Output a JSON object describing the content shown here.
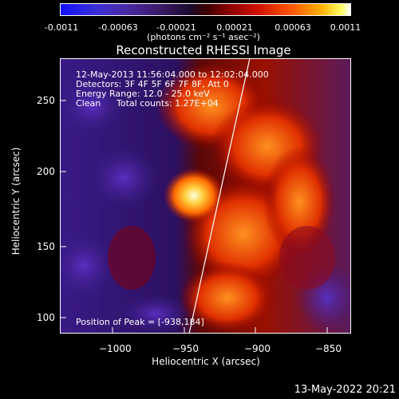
{
  "colorbar": {
    "ticks": [
      "-0.0011",
      "-0.00063",
      "-0.00021",
      "0.00021",
      "0.00063",
      "0.0011"
    ],
    "units": "(photons cm⁻² s⁻¹ asec⁻²)"
  },
  "title": "Reconstructed RHESSI Image",
  "info": {
    "time": "12-May-2013 11:56:04.000 to 12:02:04.000",
    "detectors": "Detectors: 3F 4F 5F 6F 7F 8F, Att 0",
    "energy": "Energy Range: 12.0 - 25.0 keV",
    "method": "Clean",
    "counts": "Total counts: 1.27E+04",
    "peak": "Position of Peak = [-938,184]"
  },
  "axes": {
    "xlabel": "Heliocentric X (arcsec)",
    "ylabel": "Heliocentric Y (arcsec)",
    "xticks": [
      "−1000",
      "−950",
      "−900",
      "−850"
    ],
    "yticks": [
      "250",
      "200",
      "150",
      "100"
    ]
  },
  "footer_date": "13-May-2022 20:21",
  "colors": {
    "background": "#000000",
    "limb_line": "#ffffff",
    "peak_core": "#ffffaa",
    "hot_orange": "#ff7a00",
    "red": "#b00000",
    "violet": "#3a1c88"
  }
}
